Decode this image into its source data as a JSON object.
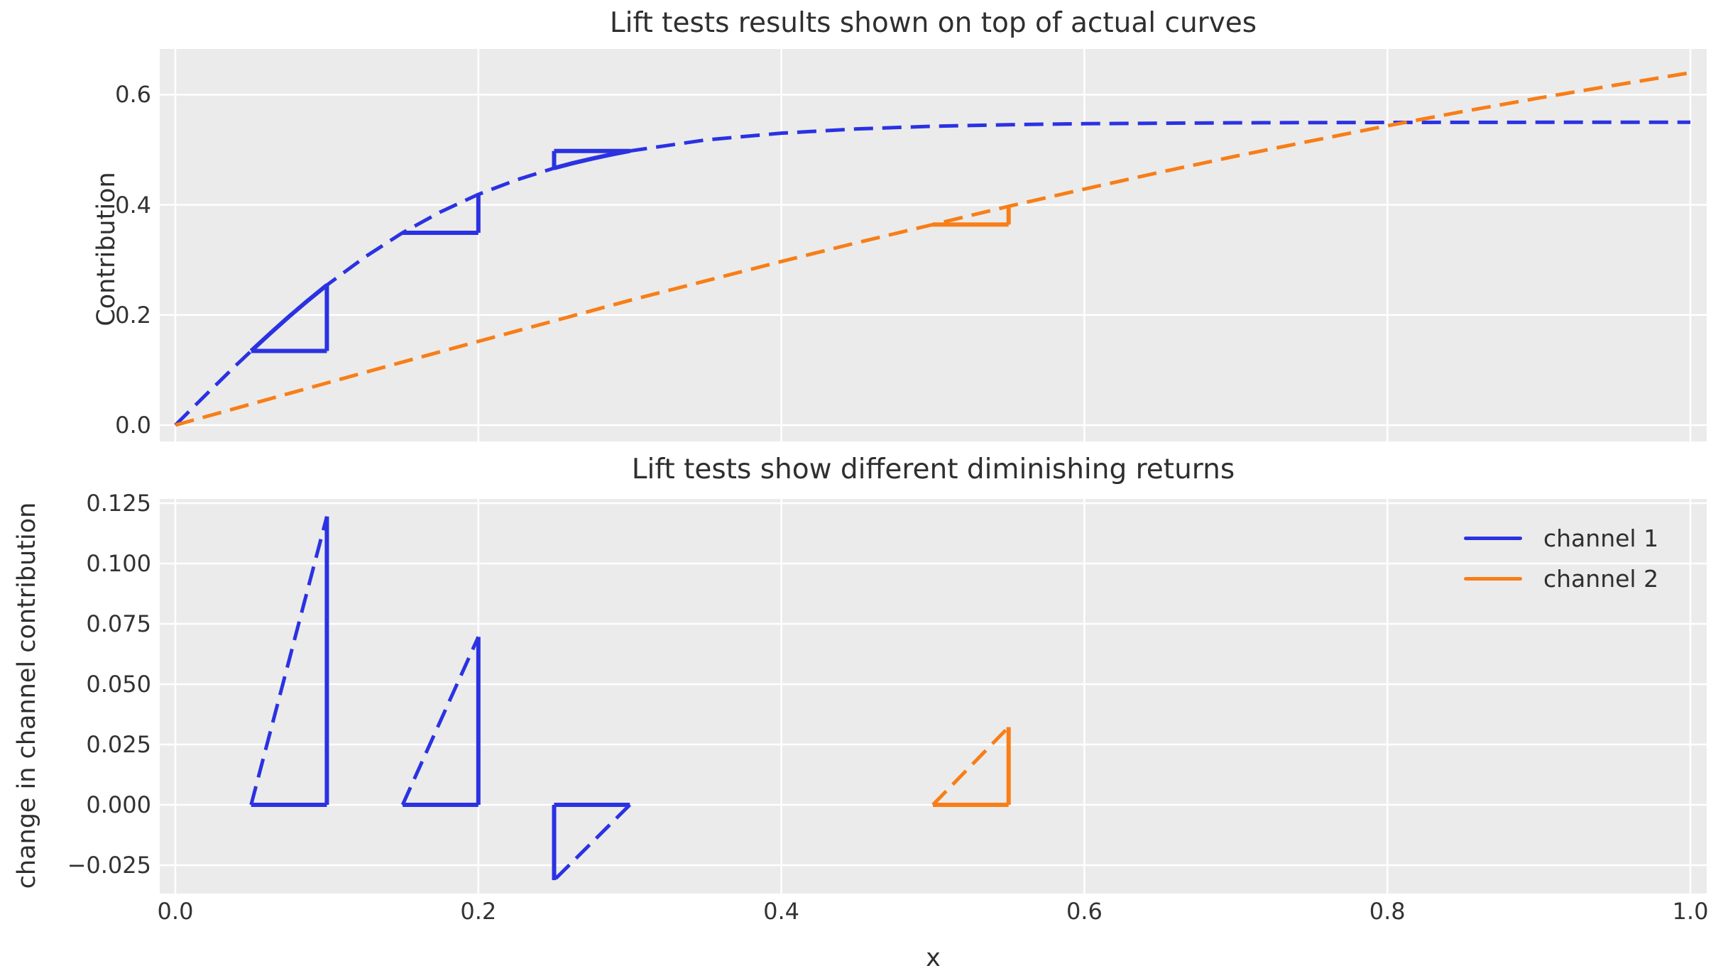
{
  "colors": {
    "channel1": "#2b32e2",
    "channel2": "#f87e17",
    "axes_bg": "#ebebeb",
    "grid": "#ffffff",
    "figure_bg": "#ffffff",
    "text": "#2f2f2f"
  },
  "legend": {
    "location": "upper right",
    "entries": [
      {
        "label": "channel 1",
        "color_key": "channel1"
      },
      {
        "label": "channel 2",
        "color_key": "channel2"
      }
    ]
  },
  "chart_data": [
    {
      "type": "line",
      "title": "Lift tests results shown on top of actual curves",
      "xlabel": "",
      "ylabel": "Contribution",
      "xlim": [
        -0.0103,
        1.0108
      ],
      "ylim": [
        -0.0296,
        0.683
      ],
      "grid": true,
      "xticks": {
        "values": [
          0.0,
          0.2,
          0.4,
          0.6,
          0.8,
          1.0
        ],
        "labels": []
      },
      "yticks": {
        "values": [
          0.0,
          0.2,
          0.4,
          0.6
        ],
        "labels": [
          "0.0",
          "0.2",
          "0.4",
          "0.6"
        ]
      },
      "series": [
        {
          "name": "channel 1",
          "color_key": "channel1",
          "style": "dashed",
          "points": [
            [
              0,
              0
            ],
            [
              0.02,
              0.0548
            ],
            [
              0.04,
              0.1086
            ],
            [
              0.06,
              0.1602
            ],
            [
              0.08,
              0.209
            ],
            [
              0.1,
              0.2542
            ],
            [
              0.125,
              0.305
            ],
            [
              0.15,
              0.3493
            ],
            [
              0.175,
              0.3871
            ],
            [
              0.2,
              0.4189
            ],
            [
              0.225,
              0.4451
            ],
            [
              0.25,
              0.4666
            ],
            [
              0.275,
              0.4838
            ],
            [
              0.3,
              0.4978
            ],
            [
              0.35,
              0.5178
            ],
            [
              0.4,
              0.5302
            ],
            [
              0.45,
              0.5379
            ],
            [
              0.5,
              0.5426
            ],
            [
              0.55,
              0.5455
            ],
            [
              0.6,
              0.5473
            ],
            [
              0.7,
              0.549
            ],
            [
              0.8,
              0.5496
            ],
            [
              0.9,
              0.5499
            ],
            [
              1,
              0.55
            ]
          ]
        },
        {
          "name": "channel 2",
          "color_key": "channel2",
          "style": "dashed",
          "points": [
            [
              0,
              0
            ],
            [
              0.05,
              0.0383
            ],
            [
              0.1,
              0.0765
            ],
            [
              0.15,
              0.1145
            ],
            [
              0.2,
              0.1521
            ],
            [
              0.25,
              0.1893
            ],
            [
              0.3,
              0.2265
            ],
            [
              0.35,
              0.2618
            ],
            [
              0.4,
              0.2972
            ],
            [
              0.45,
              0.3313
            ],
            [
              0.5,
              0.3642
            ],
            [
              0.55,
              0.3973
            ],
            [
              0.6,
              0.4286
            ],
            [
              0.65,
              0.4591
            ],
            [
              0.7,
              0.4884
            ],
            [
              0.75,
              0.5163
            ],
            [
              0.8,
              0.5436
            ],
            [
              0.85,
              0.5694
            ],
            [
              0.9,
              0.5939
            ],
            [
              0.95,
              0.6171
            ],
            [
              1,
              0.6398
            ]
          ]
        }
      ],
      "lift_tests": [
        {
          "channel": "channel 1",
          "color_key": "channel1",
          "x0": 0.05,
          "dx": 0.05,
          "y0": 0.1347,
          "dy": 0.1195,
          "chord_points": [
            [
              0.05,
              0.1347
            ],
            [
              0.0625,
              0.1664
            ],
            [
              0.075,
              0.1971
            ],
            [
              0.0875,
              0.2263
            ],
            [
              0.1,
              0.2542
            ]
          ]
        },
        {
          "channel": "channel 1",
          "color_key": "channel1",
          "x0": 0.15,
          "dx": 0.05,
          "y0": 0.3493,
          "dy": 0.0696,
          "chord_points": []
        },
        {
          "channel": "channel 1",
          "color_key": "channel1",
          "x0": 0.3,
          "dx": -0.05,
          "y0": 0.4978,
          "dy": -0.0312,
          "chord_points": [
            [
              0.25,
              0.4666
            ],
            [
              0.2625,
              0.4758
            ],
            [
              0.275,
              0.4838
            ],
            [
              0.2875,
              0.4912
            ],
            [
              0.3,
              0.4978
            ]
          ]
        },
        {
          "channel": "channel 2",
          "color_key": "channel2",
          "x0": 0.5,
          "dx": 0.05,
          "y0": 0.3642,
          "dy": 0.0322,
          "chord_points": []
        }
      ]
    },
    {
      "type": "line",
      "title": "Lift tests show different diminishing returns",
      "xlabel": "x",
      "ylabel": "change in channel contribution",
      "xlim": [
        -0.0103,
        1.0108
      ],
      "ylim": [
        -0.0368,
        0.1268
      ],
      "grid": true,
      "xticks": {
        "values": [
          0.0,
          0.2,
          0.4,
          0.6,
          0.8,
          1.0
        ],
        "labels": [
          "0.0",
          "0.2",
          "0.4",
          "0.6",
          "0.8",
          "1.0"
        ]
      },
      "yticks": {
        "values": [
          -0.025,
          0.0,
          0.025,
          0.05,
          0.075,
          0.1,
          0.125
        ],
        "labels": [
          "−0.025",
          "0.000",
          "0.025",
          "0.050",
          "0.075",
          "0.100",
          "0.125"
        ]
      },
      "triangles": [
        {
          "channel": "channel 1",
          "color_key": "channel1",
          "x0": 0.05,
          "dx": 0.05,
          "dy": 0.1195
        },
        {
          "channel": "channel 1",
          "color_key": "channel1",
          "x0": 0.15,
          "dx": 0.05,
          "dy": 0.0696
        },
        {
          "channel": "channel 1",
          "color_key": "channel1",
          "x0": 0.3,
          "dx": -0.05,
          "dy": -0.0312
        },
        {
          "channel": "channel 2",
          "color_key": "channel2",
          "x0": 0.5,
          "dx": 0.05,
          "dy": 0.0322
        }
      ]
    }
  ]
}
